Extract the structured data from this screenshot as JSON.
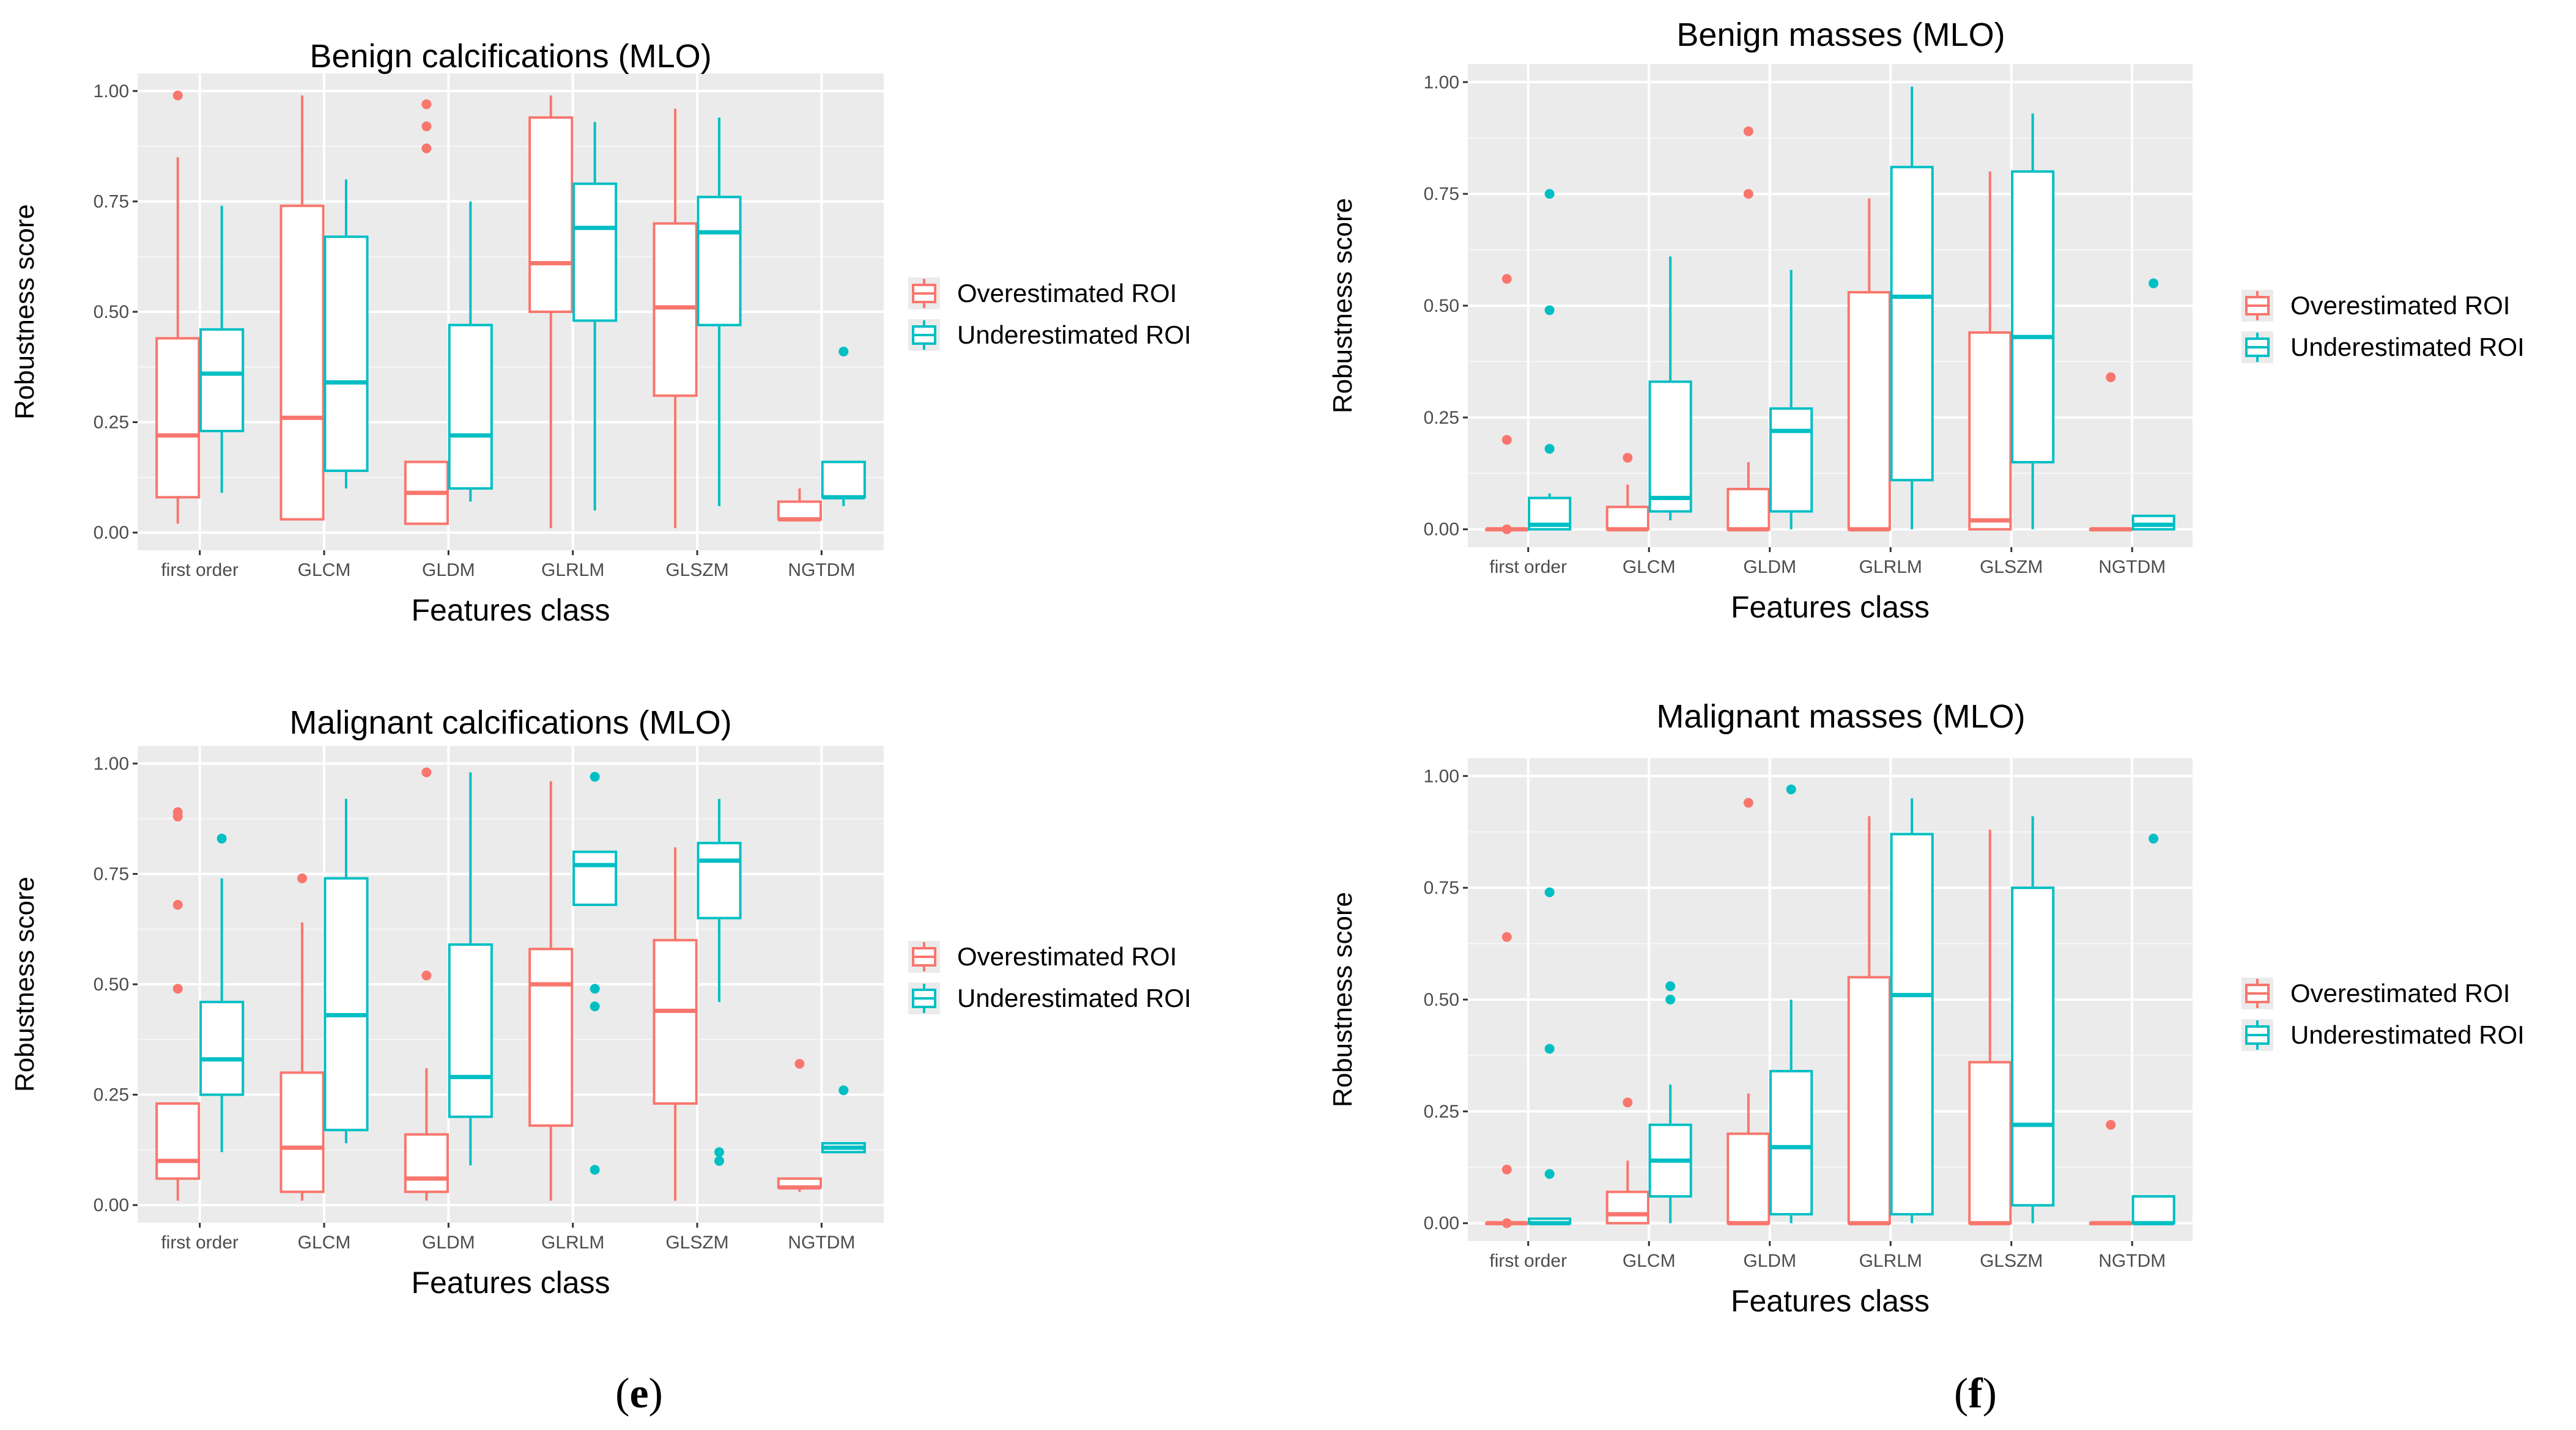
{
  "colors": {
    "over": "#F8766D",
    "under": "#00BFC4",
    "panel_bg": "#EBEBEB",
    "grid": "#FFFFFF",
    "axis_text": "#4D4D4D"
  },
  "panel_labels": {
    "left": "e",
    "right": "f"
  },
  "chart_data": [
    {
      "type": "boxplot",
      "title": "Benign calcifications (MLO)",
      "xlabel": "Features class",
      "ylabel": "Robustness score",
      "ylim": [
        0,
        1
      ],
      "yticks": [
        "0.00",
        "0.25",
        "0.50",
        "0.75",
        "1.00"
      ],
      "categories": [
        "first order",
        "GLCM",
        "GLDM",
        "GLRLM",
        "GLSZM",
        "NGTDM"
      ],
      "legend": {
        "placement": "right",
        "entries": [
          "Overestimated ROI",
          "Underestimated ROI"
        ]
      },
      "series": [
        {
          "name": "Overestimated ROI",
          "color_key": "over",
          "boxes": [
            {
              "min": 0.02,
              "q1": 0.08,
              "median": 0.22,
              "q3": 0.44,
              "max": 0.85,
              "outliers": [
                0.99
              ]
            },
            {
              "min": 0.03,
              "q1": 0.03,
              "median": 0.26,
              "q3": 0.74,
              "max": 0.99,
              "outliers": []
            },
            {
              "min": 0.02,
              "q1": 0.02,
              "median": 0.09,
              "q3": 0.16,
              "max": 0.16,
              "outliers": [
                0.87,
                0.92,
                0.97
              ]
            },
            {
              "min": 0.01,
              "q1": 0.5,
              "median": 0.61,
              "q3": 0.94,
              "max": 0.99,
              "outliers": []
            },
            {
              "min": 0.01,
              "q1": 0.31,
              "median": 0.51,
              "q3": 0.7,
              "max": 0.96,
              "outliers": []
            },
            {
              "min": 0.03,
              "q1": 0.03,
              "median": 0.03,
              "q3": 0.07,
              "max": 0.1,
              "outliers": []
            }
          ]
        },
        {
          "name": "Underestimated ROI",
          "color_key": "under",
          "boxes": [
            {
              "min": 0.09,
              "q1": 0.23,
              "median": 0.36,
              "q3": 0.46,
              "max": 0.74,
              "outliers": []
            },
            {
              "min": 0.1,
              "q1": 0.14,
              "median": 0.34,
              "q3": 0.67,
              "max": 0.8,
              "outliers": []
            },
            {
              "min": 0.07,
              "q1": 0.1,
              "median": 0.22,
              "q3": 0.47,
              "max": 0.75,
              "outliers": []
            },
            {
              "min": 0.05,
              "q1": 0.48,
              "median": 0.69,
              "q3": 0.79,
              "max": 0.93,
              "outliers": []
            },
            {
              "min": 0.06,
              "q1": 0.47,
              "median": 0.68,
              "q3": 0.76,
              "max": 0.94,
              "outliers": []
            },
            {
              "min": 0.06,
              "q1": 0.08,
              "median": 0.08,
              "q3": 0.16,
              "max": 0.16,
              "outliers": [
                0.41
              ]
            }
          ]
        }
      ]
    },
    {
      "type": "boxplot",
      "title": "Benign masses (MLO)",
      "xlabel": "Features class",
      "ylabel": "Robustness score",
      "ylim": [
        0,
        1
      ],
      "yticks": [
        "0.00",
        "0.25",
        "0.50",
        "0.75",
        "1.00"
      ],
      "categories": [
        "first order",
        "GLCM",
        "GLDM",
        "GLRLM",
        "GLSZM",
        "NGTDM"
      ],
      "legend": {
        "placement": "right",
        "entries": [
          "Overestimated ROI",
          "Underestimated ROI"
        ]
      },
      "series": [
        {
          "name": "Overestimated ROI",
          "color_key": "over",
          "boxes": [
            {
              "min": 0.0,
              "q1": 0.0,
              "median": 0.0,
              "q3": 0.0,
              "max": 0.0,
              "outliers": [
                0.0,
                0.2,
                0.56
              ]
            },
            {
              "min": 0.0,
              "q1": 0.0,
              "median": 0.0,
              "q3": 0.05,
              "max": 0.1,
              "outliers": [
                0.16
              ]
            },
            {
              "min": 0.0,
              "q1": 0.0,
              "median": 0.0,
              "q3": 0.09,
              "max": 0.15,
              "outliers": [
                0.75,
                0.89
              ]
            },
            {
              "min": 0.0,
              "q1": 0.0,
              "median": 0.0,
              "q3": 0.53,
              "max": 0.74,
              "outliers": []
            },
            {
              "min": 0.0,
              "q1": 0.0,
              "median": 0.02,
              "q3": 0.44,
              "max": 0.8,
              "outliers": []
            },
            {
              "min": 0.0,
              "q1": 0.0,
              "median": 0.0,
              "q3": 0.0,
              "max": 0.0,
              "outliers": [
                0.34
              ]
            }
          ]
        },
        {
          "name": "Underestimated ROI",
          "color_key": "under",
          "boxes": [
            {
              "min": 0.0,
              "q1": 0.0,
              "median": 0.01,
              "q3": 0.07,
              "max": 0.08,
              "outliers": [
                0.18,
                0.49,
                0.75
              ]
            },
            {
              "min": 0.02,
              "q1": 0.04,
              "median": 0.07,
              "q3": 0.33,
              "max": 0.61,
              "outliers": []
            },
            {
              "min": 0.0,
              "q1": 0.04,
              "median": 0.22,
              "q3": 0.27,
              "max": 0.58,
              "outliers": []
            },
            {
              "min": 0.0,
              "q1": 0.11,
              "median": 0.52,
              "q3": 0.81,
              "max": 0.99,
              "outliers": []
            },
            {
              "min": 0.0,
              "q1": 0.15,
              "median": 0.43,
              "q3": 0.8,
              "max": 0.93,
              "outliers": []
            },
            {
              "min": 0.0,
              "q1": 0.0,
              "median": 0.01,
              "q3": 0.03,
              "max": 0.03,
              "outliers": [
                0.55
              ]
            }
          ]
        }
      ]
    },
    {
      "type": "boxplot",
      "title": "Malignant calcifications (MLO)",
      "xlabel": "Features class",
      "ylabel": "Robustness score",
      "ylim": [
        0,
        1
      ],
      "yticks": [
        "0.00",
        "0.25",
        "0.50",
        "0.75",
        "1.00"
      ],
      "categories": [
        "first order",
        "GLCM",
        "GLDM",
        "GLRLM",
        "GLSZM",
        "NGTDM"
      ],
      "legend": {
        "placement": "right",
        "entries": [
          "Overestimated ROI",
          "Underestimated ROI"
        ]
      },
      "series": [
        {
          "name": "Overestimated ROI",
          "color_key": "over",
          "boxes": [
            {
              "min": 0.01,
              "q1": 0.06,
              "median": 0.1,
              "q3": 0.23,
              "max": 0.23,
              "outliers": [
                0.49,
                0.68,
                0.88,
                0.89
              ]
            },
            {
              "min": 0.01,
              "q1": 0.03,
              "median": 0.13,
              "q3": 0.3,
              "max": 0.64,
              "outliers": [
                0.74
              ]
            },
            {
              "min": 0.01,
              "q1": 0.03,
              "median": 0.06,
              "q3": 0.16,
              "max": 0.31,
              "outliers": [
                0.52,
                0.98
              ]
            },
            {
              "min": 0.01,
              "q1": 0.18,
              "median": 0.5,
              "q3": 0.58,
              "max": 0.96,
              "outliers": []
            },
            {
              "min": 0.01,
              "q1": 0.23,
              "median": 0.44,
              "q3": 0.6,
              "max": 0.81,
              "outliers": []
            },
            {
              "min": 0.03,
              "q1": 0.04,
              "median": 0.04,
              "q3": 0.06,
              "max": 0.06,
              "outliers": [
                0.32
              ]
            }
          ]
        },
        {
          "name": "Underestimated ROI",
          "color_key": "under",
          "boxes": [
            {
              "min": 0.12,
              "q1": 0.25,
              "median": 0.33,
              "q3": 0.46,
              "max": 0.74,
              "outliers": [
                0.83
              ]
            },
            {
              "min": 0.14,
              "q1": 0.17,
              "median": 0.43,
              "q3": 0.74,
              "max": 0.92,
              "outliers": []
            },
            {
              "min": 0.09,
              "q1": 0.2,
              "median": 0.29,
              "q3": 0.59,
              "max": 0.98,
              "outliers": []
            },
            {
              "min": 0.68,
              "q1": 0.68,
              "median": 0.77,
              "q3": 0.8,
              "max": 0.8,
              "outliers": [
                0.08,
                0.45,
                0.49,
                0.97
              ]
            },
            {
              "min": 0.46,
              "q1": 0.65,
              "median": 0.78,
              "q3": 0.82,
              "max": 0.92,
              "outliers": [
                0.1,
                0.12
              ]
            },
            {
              "min": 0.12,
              "q1": 0.12,
              "median": 0.13,
              "q3": 0.14,
              "max": 0.14,
              "outliers": [
                0.26
              ]
            }
          ]
        }
      ]
    },
    {
      "type": "boxplot",
      "title": "Malignant masses (MLO)",
      "xlabel": "Features class",
      "ylabel": "Robustness score",
      "ylim": [
        0,
        1
      ],
      "yticks": [
        "0.00",
        "0.25",
        "0.50",
        "0.75",
        "1.00"
      ],
      "categories": [
        "first order",
        "GLCM",
        "GLDM",
        "GLRLM",
        "GLSZM",
        "NGTDM"
      ],
      "legend": {
        "placement": "right",
        "entries": [
          "Overestimated ROI",
          "Underestimated ROI"
        ]
      },
      "series": [
        {
          "name": "Overestimated ROI",
          "color_key": "over",
          "boxes": [
            {
              "min": 0.0,
              "q1": 0.0,
              "median": 0.0,
              "q3": 0.0,
              "max": 0.0,
              "outliers": [
                0.0,
                0.12,
                0.64
              ]
            },
            {
              "min": 0.0,
              "q1": 0.0,
              "median": 0.02,
              "q3": 0.07,
              "max": 0.14,
              "outliers": [
                0.27
              ]
            },
            {
              "min": 0.0,
              "q1": 0.0,
              "median": 0.0,
              "q3": 0.2,
              "max": 0.29,
              "outliers": [
                0.94
              ]
            },
            {
              "min": 0.0,
              "q1": 0.0,
              "median": 0.0,
              "q3": 0.55,
              "max": 0.91,
              "outliers": []
            },
            {
              "min": 0.0,
              "q1": 0.0,
              "median": 0.0,
              "q3": 0.36,
              "max": 0.88,
              "outliers": []
            },
            {
              "min": 0.0,
              "q1": 0.0,
              "median": 0.0,
              "q3": 0.0,
              "max": 0.0,
              "outliers": [
                0.22
              ]
            }
          ]
        },
        {
          "name": "Underestimated ROI",
          "color_key": "under",
          "boxes": [
            {
              "min": 0.0,
              "q1": 0.0,
              "median": 0.0,
              "q3": 0.01,
              "max": 0.01,
              "outliers": [
                0.11,
                0.39,
                0.74
              ]
            },
            {
              "min": 0.0,
              "q1": 0.06,
              "median": 0.14,
              "q3": 0.22,
              "max": 0.31,
              "outliers": [
                0.5,
                0.53
              ]
            },
            {
              "min": 0.0,
              "q1": 0.02,
              "median": 0.17,
              "q3": 0.34,
              "max": 0.5,
              "outliers": [
                0.97
              ]
            },
            {
              "min": 0.0,
              "q1": 0.02,
              "median": 0.51,
              "q3": 0.87,
              "max": 0.95,
              "outliers": []
            },
            {
              "min": 0.0,
              "q1": 0.04,
              "median": 0.22,
              "q3": 0.75,
              "max": 0.91,
              "outliers": []
            },
            {
              "min": 0.0,
              "q1": 0.0,
              "median": 0.0,
              "q3": 0.06,
              "max": 0.06,
              "outliers": [
                0.86
              ]
            }
          ]
        }
      ]
    }
  ]
}
